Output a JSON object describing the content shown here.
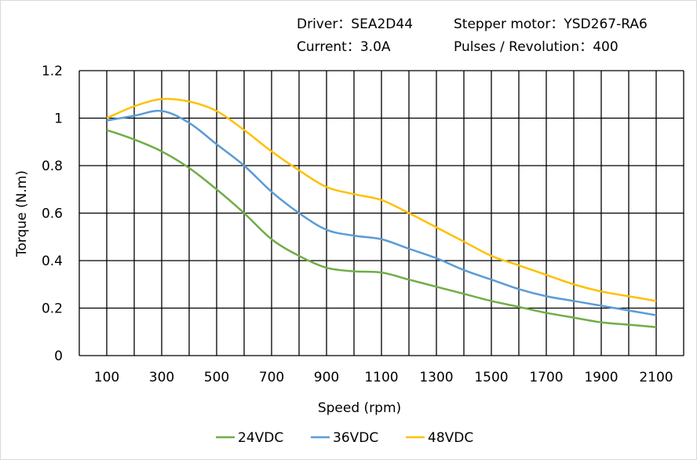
{
  "header": {
    "driver": "Driver：SEA2D44",
    "motor": "Stepper motor：YSD267-RA6",
    "current": "Current：3.0A",
    "pulses": "Pulses / Revolution：400"
  },
  "chart_data": {
    "type": "line",
    "title": "",
    "xlabel": "Speed  (rpm)",
    "ylabel": "Torque (N.m)",
    "xlim": [
      0,
      2200
    ],
    "ylim": [
      0,
      1.2
    ],
    "grid": true,
    "legend": "bottom",
    "x_ticks": [
      "100",
      "300",
      "500",
      "700",
      "900",
      "1100",
      "1300",
      "1500",
      "1700",
      "1900",
      "2100"
    ],
    "y_ticks": [
      "0",
      "0.2",
      "0.4",
      "0.6",
      "0.8",
      "1",
      "1.2"
    ],
    "x": [
      100,
      200,
      300,
      400,
      500,
      600,
      700,
      800,
      900,
      1000,
      1100,
      1200,
      1300,
      1400,
      1500,
      1600,
      1700,
      1800,
      1900,
      2000,
      2100
    ],
    "series": [
      {
        "name": "24VDC",
        "color": "#70ad47",
        "values": [
          0.95,
          0.91,
          0.86,
          0.79,
          0.7,
          0.6,
          0.49,
          0.42,
          0.37,
          0.355,
          0.35,
          0.32,
          0.29,
          0.26,
          0.23,
          0.205,
          0.18,
          0.16,
          0.14,
          0.13,
          0.12
        ]
      },
      {
        "name": "36VDC",
        "color": "#5b9bd5",
        "values": [
          0.99,
          1.01,
          1.03,
          0.98,
          0.89,
          0.8,
          0.69,
          0.6,
          0.53,
          0.505,
          0.49,
          0.45,
          0.41,
          0.36,
          0.32,
          0.28,
          0.25,
          0.23,
          0.21,
          0.19,
          0.17
        ]
      },
      {
        "name": "48VDC",
        "color": "#ffc000",
        "values": [
          1.0,
          1.05,
          1.08,
          1.07,
          1.03,
          0.95,
          0.86,
          0.78,
          0.71,
          0.68,
          0.655,
          0.6,
          0.54,
          0.48,
          0.42,
          0.38,
          0.34,
          0.3,
          0.27,
          0.25,
          0.23
        ]
      }
    ]
  }
}
